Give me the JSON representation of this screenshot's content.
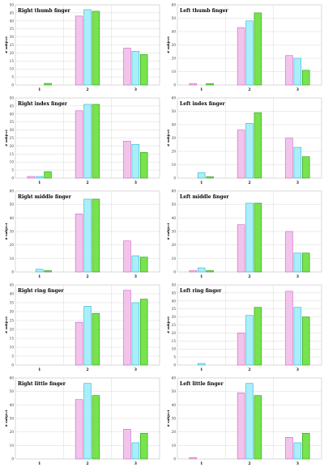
{
  "colors": {
    "pink": "#f2c4ec",
    "pink_edge": "#d45fc4",
    "cyan": "#a9eef8",
    "cyan_edge": "#2fb6d0",
    "green": "#77e34d",
    "green_edge": "#2c9a1d",
    "grid": "#d8d8d8"
  },
  "chart_data": [
    {
      "type": "bar",
      "title": "Right thumb finger",
      "ylabel": "# subject",
      "categories": [
        "1",
        "2",
        "3"
      ],
      "ylim": [
        0,
        50
      ],
      "yticks": [
        0,
        5,
        10,
        15,
        20,
        25,
        30,
        35,
        40,
        45,
        50
      ],
      "grid": true,
      "series": [
        {
          "values": [
            0,
            43,
            23
          ]
        },
        {
          "values": [
            0,
            47,
            21
          ]
        },
        {
          "values": [
            1,
            46,
            19
          ]
        }
      ]
    },
    {
      "type": "bar",
      "title": "Left thumb finger",
      "ylabel": "# subject",
      "categories": [
        "1",
        "2",
        "3"
      ],
      "ylim": [
        0,
        60
      ],
      "yticks": [
        0,
        10,
        20,
        30,
        40,
        50,
        60
      ],
      "grid": true,
      "series": [
        {
          "values": [
            1,
            43,
            22
          ]
        },
        {
          "values": [
            0,
            48,
            20
          ]
        },
        {
          "values": [
            1,
            54,
            11
          ]
        }
      ]
    },
    {
      "type": "bar",
      "title": "Right index finger",
      "ylabel": "# subject",
      "categories": [
        "1",
        "2",
        "3"
      ],
      "ylim": [
        0,
        50
      ],
      "yticks": [
        0,
        5,
        10,
        15,
        20,
        25,
        30,
        35,
        40,
        45,
        50
      ],
      "grid": true,
      "series": [
        {
          "values": [
            1,
            42,
            23
          ]
        },
        {
          "values": [
            1,
            46,
            21
          ]
        },
        {
          "values": [
            4,
            46,
            16
          ]
        }
      ]
    },
    {
      "type": "bar",
      "title": "Left index finger",
      "ylabel": "# subject",
      "categories": [
        "1",
        "2",
        "3"
      ],
      "ylim": [
        0,
        60
      ],
      "yticks": [
        0,
        10,
        20,
        30,
        40,
        50,
        60
      ],
      "grid": true,
      "series": [
        {
          "values": [
            0,
            36,
            30
          ]
        },
        {
          "values": [
            4,
            41,
            23
          ]
        },
        {
          "values": [
            1,
            49,
            16
          ]
        }
      ]
    },
    {
      "type": "bar",
      "title": "Right middle finger",
      "ylabel": "# subject",
      "categories": [
        "1",
        "2",
        "3"
      ],
      "ylim": [
        0,
        60
      ],
      "yticks": [
        0,
        10,
        20,
        30,
        40,
        50,
        60
      ],
      "grid": true,
      "series": [
        {
          "values": [
            0,
            43,
            23
          ]
        },
        {
          "values": [
            2,
            54,
            12
          ]
        },
        {
          "values": [
            1,
            54,
            11
          ]
        }
      ]
    },
    {
      "type": "bar",
      "title": "Left middle finger",
      "ylabel": "# subject",
      "categories": [
        "1",
        "2",
        "3"
      ],
      "ylim": [
        0,
        60
      ],
      "yticks": [
        0,
        10,
        20,
        30,
        40,
        50,
        60
      ],
      "grid": true,
      "series": [
        {
          "values": [
            1,
            35,
            30
          ]
        },
        {
          "values": [
            3,
            51,
            14
          ]
        },
        {
          "values": [
            1,
            51,
            14
          ]
        }
      ]
    },
    {
      "type": "bar",
      "title": "Right ring finger",
      "ylabel": "# subject",
      "categories": [
        "1",
        "2",
        "3"
      ],
      "ylim": [
        0,
        45
      ],
      "yticks": [
        0,
        5,
        10,
        15,
        20,
        25,
        30,
        35,
        40,
        45
      ],
      "grid": true,
      "series": [
        {
          "values": [
            0,
            24,
            42
          ]
        },
        {
          "values": [
            0,
            33,
            35
          ]
        },
        {
          "values": [
            0,
            29,
            37
          ]
        }
      ]
    },
    {
      "type": "bar",
      "title": "Left ring finger",
      "ylabel": "# subject",
      "categories": [
        "1",
        "2",
        "3"
      ],
      "ylim": [
        0,
        50
      ],
      "yticks": [
        0,
        5,
        10,
        15,
        20,
        25,
        30,
        35,
        40,
        45,
        50
      ],
      "grid": true,
      "series": [
        {
          "values": [
            0,
            20,
            46
          ]
        },
        {
          "values": [
            1,
            31,
            36
          ]
        },
        {
          "values": [
            0,
            36,
            30
          ]
        }
      ]
    },
    {
      "type": "bar",
      "title": "Right little finger",
      "ylabel": "# subject",
      "categories": [
        "1",
        "2",
        "3"
      ],
      "ylim": [
        0,
        60
      ],
      "yticks": [
        0,
        10,
        20,
        30,
        40,
        50,
        60
      ],
      "grid": true,
      "series": [
        {
          "values": [
            0,
            44,
            22
          ]
        },
        {
          "values": [
            0,
            56,
            12
          ]
        },
        {
          "values": [
            0,
            47,
            19
          ]
        }
      ]
    },
    {
      "type": "bar",
      "title": "Left little finger",
      "ylabel": "# subject",
      "categories": [
        "1",
        "2",
        "3"
      ],
      "ylim": [
        0,
        60
      ],
      "yticks": [
        0,
        10,
        20,
        30,
        40,
        50,
        60
      ],
      "grid": true,
      "series": [
        {
          "values": [
            1,
            49,
            16
          ]
        },
        {
          "values": [
            0,
            56,
            12
          ]
        },
        {
          "values": [
            0,
            47,
            19
          ]
        }
      ]
    }
  ]
}
